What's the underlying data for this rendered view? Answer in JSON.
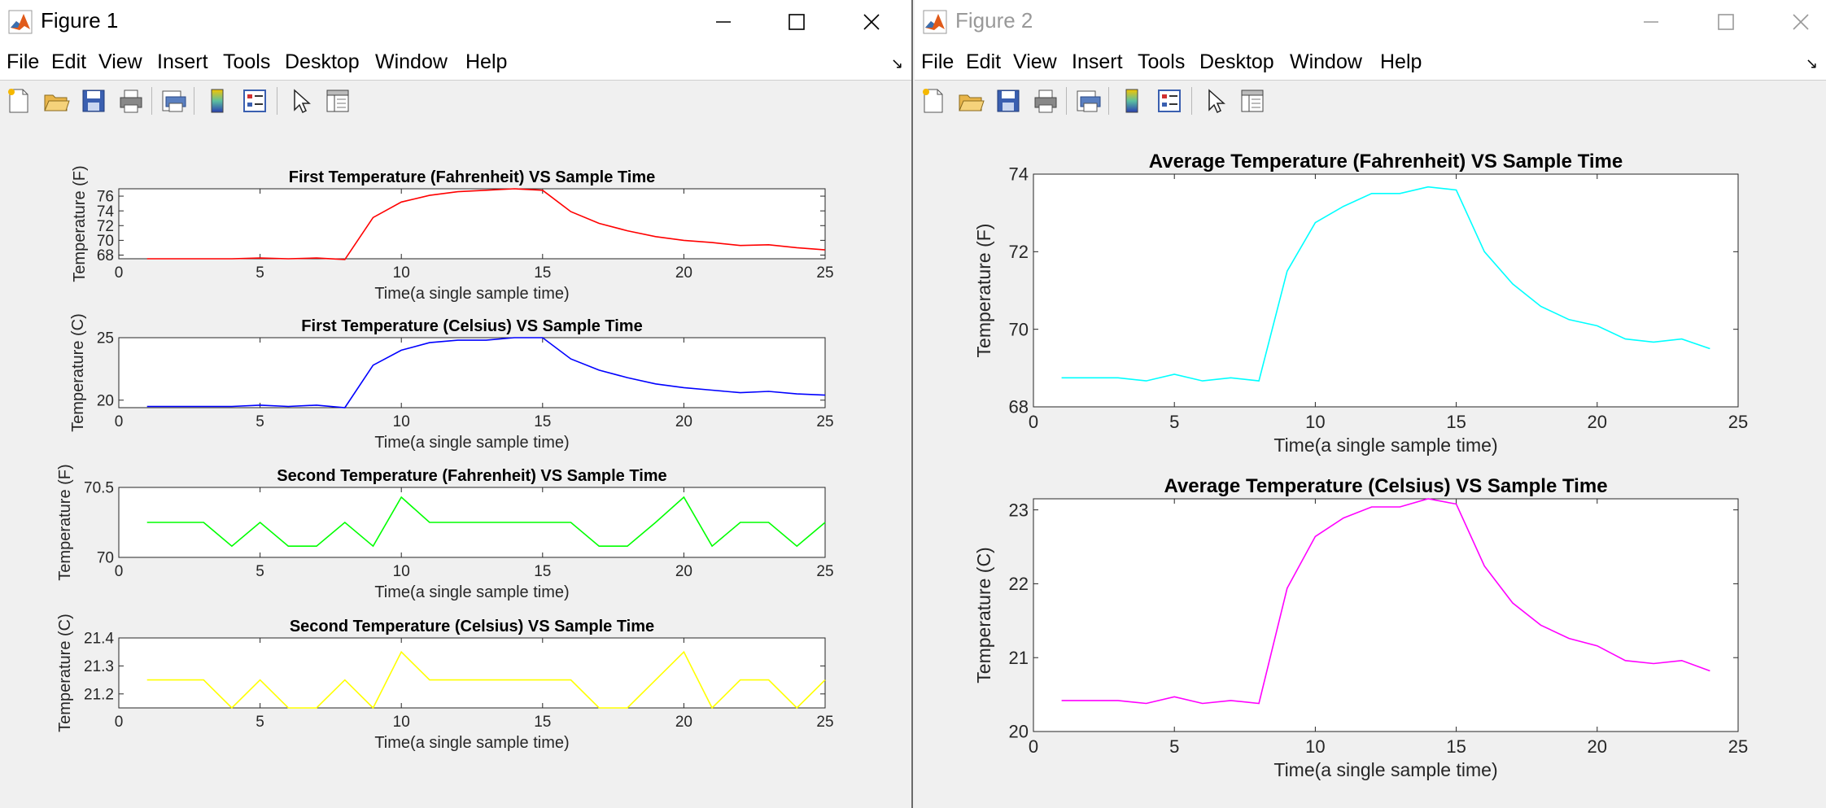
{
  "windows": [
    {
      "title": "Figure 1",
      "active": true,
      "menu": [
        "File",
        "Edit",
        "View",
        "Insert",
        "Tools",
        "Desktop",
        "Window",
        "Help"
      ],
      "plots": [
        {
          "title": "First Temperature (Fahrenheit) VS Sample Time",
          "xlabel": "Time(a single sample time)",
          "ylabel": "Temperature (F)",
          "color": "#ff0000"
        },
        {
          "title": "First Temperature (Celsius) VS Sample Time",
          "xlabel": "Time(a single sample time)",
          "ylabel": "Temperature (C)",
          "color": "#0000ff"
        },
        {
          "title": "Second Temperature (Fahrenheit) VS Sample Time",
          "xlabel": "Time(a single sample time)",
          "ylabel": "Temperature (F)",
          "color": "#00ff00"
        },
        {
          "title": "Second Temperature (Celsius) VS Sample Time",
          "xlabel": "Time(a single sample time)",
          "ylabel": "Temperature (C)",
          "color": "#ffff00"
        }
      ]
    },
    {
      "title": "Figure 2",
      "active": false,
      "menu": [
        "File",
        "Edit",
        "View",
        "Insert",
        "Tools",
        "Desktop",
        "Window",
        "Help"
      ],
      "plots": [
        {
          "title": "Average Temperature (Fahrenheit) VS Sample Time",
          "xlabel": "Time(a single sample time)",
          "ylabel": "Temperature (F)",
          "color": "#00ffff"
        },
        {
          "title": "Average Temperature (Celsius) VS Sample Time",
          "xlabel": "Time(a single sample time)",
          "ylabel": "Temperature (C)",
          "color": "#ff00ff"
        }
      ]
    }
  ],
  "toolbar_icons": [
    "new-file-icon",
    "open-folder-icon",
    "save-icon",
    "print-icon",
    "print-preview-icon",
    "colorbar-icon",
    "legend-icon",
    "pointer-icon",
    "property-inspector-icon"
  ],
  "chart_data": [
    {
      "type": "line",
      "title": "First Temperature (Fahrenheit) VS Sample Time",
      "xlabel": "Time(a single sample time)",
      "ylabel": "Temperature (F)",
      "xlim": [
        0,
        25
      ],
      "ylim": [
        67.5,
        77
      ],
      "xticks": [
        0,
        5,
        10,
        15,
        20,
        25
      ],
      "yticks": [
        68,
        70,
        72,
        74,
        76
      ],
      "x": [
        1,
        2,
        3,
        4,
        5,
        6,
        7,
        8,
        9,
        10,
        11,
        12,
        13,
        14,
        15,
        16,
        17,
        18,
        19,
        20,
        21,
        22,
        23,
        24,
        25
      ],
      "values": [
        67.5,
        67.5,
        67.5,
        67.5,
        67.6,
        67.5,
        67.6,
        67.4,
        73.1,
        75.2,
        76.1,
        76.6,
        76.8,
        77.0,
        76.8,
        73.9,
        72.3,
        71.3,
        70.5,
        70.0,
        69.7,
        69.3,
        69.4,
        69.0,
        68.7
      ]
    },
    {
      "type": "line",
      "title": "First Temperature (Celsius) VS Sample Time",
      "xlabel": "Time(a single sample time)",
      "ylabel": "Temperature (C)",
      "xlim": [
        0,
        25
      ],
      "ylim": [
        19.4,
        25
      ],
      "xticks": [
        0,
        5,
        10,
        15,
        20,
        25
      ],
      "yticks": [
        20,
        25
      ],
      "x": [
        1,
        2,
        3,
        4,
        5,
        6,
        7,
        8,
        9,
        10,
        11,
        12,
        13,
        14,
        15,
        16,
        17,
        18,
        19,
        20,
        21,
        22,
        23,
        24,
        25
      ],
      "values": [
        19.5,
        19.5,
        19.5,
        19.5,
        19.6,
        19.5,
        19.6,
        19.4,
        22.8,
        24.0,
        24.6,
        24.8,
        24.8,
        25.0,
        25.0,
        23.3,
        22.4,
        21.8,
        21.3,
        21.0,
        20.8,
        20.6,
        20.7,
        20.5,
        20.4
      ]
    },
    {
      "type": "line",
      "title": "Second Temperature (Fahrenheit) VS Sample Time",
      "xlabel": "Time(a single sample time)",
      "ylabel": "Temperature (F)",
      "xlim": [
        0,
        25
      ],
      "ylim": [
        70,
        70.5
      ],
      "xticks": [
        0,
        5,
        10,
        15,
        20,
        25
      ],
      "yticks": [
        70,
        70.5
      ],
      "x": [
        1,
        2,
        3,
        4,
        5,
        6,
        7,
        8,
        9,
        10,
        11,
        12,
        13,
        14,
        15,
        16,
        17,
        18,
        19,
        20,
        21,
        22,
        23,
        24,
        25
      ],
      "values": [
        70.25,
        70.25,
        70.25,
        70.08,
        70.25,
        70.08,
        70.08,
        70.25,
        70.08,
        70.43,
        70.25,
        70.25,
        70.25,
        70.25,
        70.25,
        70.25,
        70.08,
        70.08,
        70.25,
        70.43,
        70.08,
        70.25,
        70.25,
        70.08,
        70.25
      ]
    },
    {
      "type": "line",
      "title": "Second Temperature (Celsius) VS Sample Time",
      "xlabel": "Time(a single sample time)",
      "ylabel": "Temperature (C)",
      "xlim": [
        0,
        25
      ],
      "ylim": [
        21.15,
        21.4
      ],
      "xticks": [
        0,
        5,
        10,
        15,
        20,
        25
      ],
      "yticks": [
        21.2,
        21.3,
        21.4
      ],
      "x": [
        1,
        2,
        3,
        4,
        5,
        6,
        7,
        8,
        9,
        10,
        11,
        12,
        13,
        14,
        15,
        16,
        17,
        18,
        19,
        20,
        21,
        22,
        23,
        24,
        25
      ],
      "values": [
        21.25,
        21.25,
        21.25,
        21.15,
        21.25,
        21.15,
        21.15,
        21.25,
        21.15,
        21.35,
        21.25,
        21.25,
        21.25,
        21.25,
        21.25,
        21.25,
        21.15,
        21.15,
        21.25,
        21.35,
        21.15,
        21.25,
        21.25,
        21.15,
        21.25
      ]
    },
    {
      "type": "line",
      "title": "Average Temperature (Fahrenheit) VS Sample Time",
      "xlabel": "Time(a single sample time)",
      "ylabel": "Temperature (F)",
      "xlim": [
        0,
        25
      ],
      "ylim": [
        68,
        74
      ],
      "xticks": [
        0,
        5,
        10,
        15,
        20,
        25
      ],
      "yticks": [
        68,
        70,
        72,
        74
      ],
      "x": [
        1,
        2,
        3,
        4,
        5,
        6,
        7,
        8,
        9,
        10,
        11,
        12,
        13,
        14,
        15,
        16,
        17,
        18,
        19,
        20,
        21,
        22,
        23,
        24
      ],
      "values": [
        68.75,
        68.75,
        68.75,
        68.67,
        68.84,
        68.67,
        68.75,
        68.67,
        71.5,
        72.75,
        73.17,
        73.5,
        73.5,
        73.67,
        73.59,
        72.0,
        71.17,
        70.59,
        70.25,
        70.09,
        69.75,
        69.67,
        69.75,
        69.5
      ]
    },
    {
      "type": "line",
      "title": "Average Temperature (Celsius) VS Sample Time",
      "xlabel": "Time(a single sample time)",
      "ylabel": "Temperature (C)",
      "xlim": [
        0,
        25
      ],
      "ylim": [
        20,
        23.15
      ],
      "xticks": [
        0,
        5,
        10,
        15,
        20,
        25
      ],
      "yticks": [
        20,
        21,
        22,
        23
      ],
      "x": [
        1,
        2,
        3,
        4,
        5,
        6,
        7,
        8,
        9,
        10,
        11,
        12,
        13,
        14,
        15,
        16,
        17,
        18,
        19,
        20,
        21,
        22,
        23,
        24
      ],
      "values": [
        20.42,
        20.42,
        20.42,
        20.38,
        20.47,
        20.38,
        20.42,
        20.38,
        21.94,
        22.64,
        22.89,
        23.04,
        23.04,
        23.15,
        23.08,
        22.24,
        21.74,
        21.44,
        21.26,
        21.16,
        20.96,
        20.92,
        20.96,
        20.82
      ]
    }
  ]
}
